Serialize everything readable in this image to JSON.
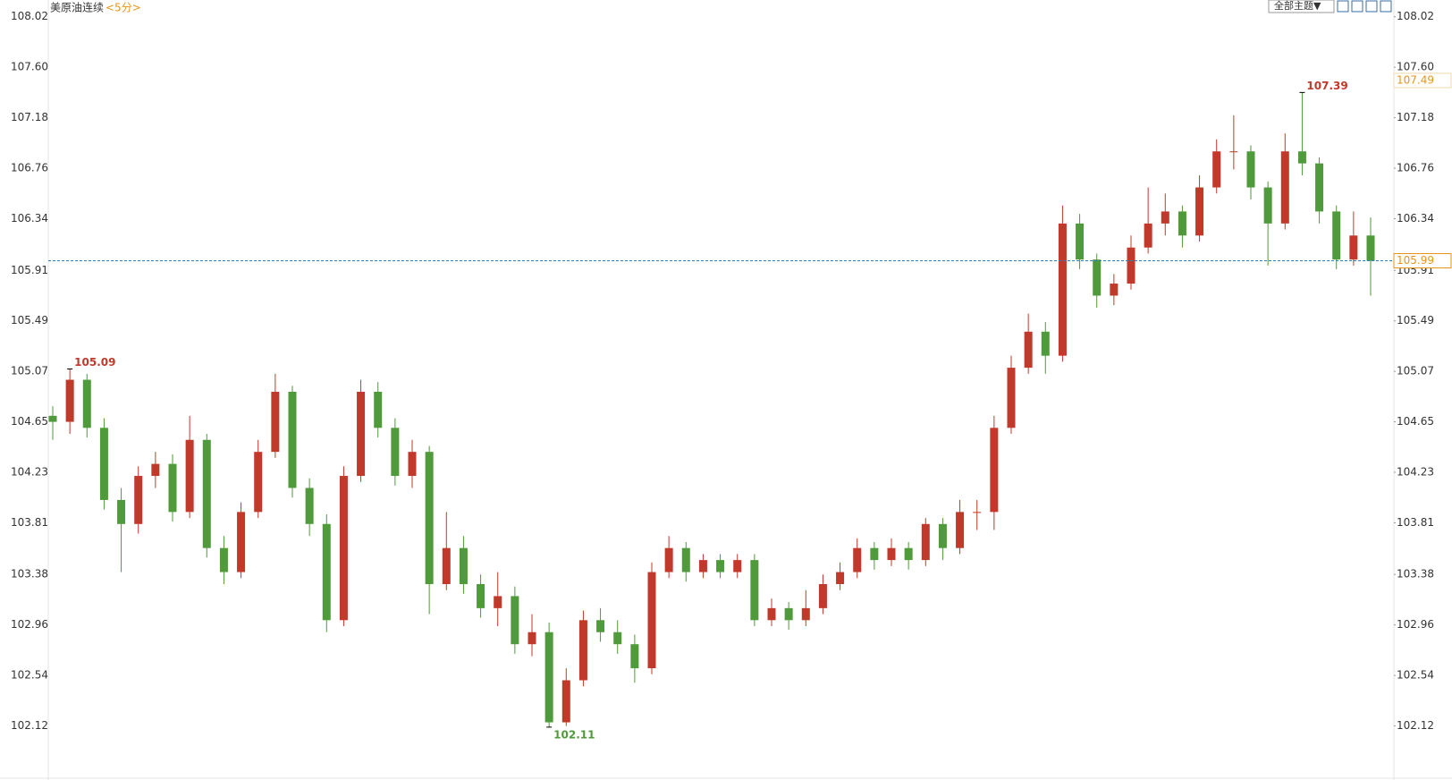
{
  "chart_data": {
    "type": "candlestick",
    "title": "美原油连续",
    "interval": "<5分>",
    "theme_button": "全部主题▼",
    "ylim": [
      101.7,
      108.07
    ],
    "yticks": [
      {
        "value": 108.02,
        "label": "108.02"
      },
      {
        "value": 107.6,
        "label": "107.60"
      },
      107.18,
      106.76,
      106.34,
      105.91,
      105.49,
      105.07,
      104.65,
      104.23,
      103.81,
      103.38,
      102.96,
      102.54,
      102.12
    ],
    "up_color": "#c0392b",
    "down_color": "#4f9a3a",
    "reference_price": 107.49,
    "series": [
      {
        "open": [
          104.7,
          104.65,
          105.0,
          104.6,
          104.0,
          103.8,
          104.2,
          104.3,
          103.9,
          104.5,
          103.6,
          103.4,
          103.9,
          104.4,
          104.9,
          104.1,
          103.8,
          103.0,
          104.2,
          104.9,
          104.6,
          104.2,
          104.4,
          103.3,
          103.6,
          103.3,
          103.1,
          103.2,
          102.8,
          102.9,
          102.15,
          102.5,
          103.0,
          102.9,
          102.8,
          102.6,
          103.4,
          103.6,
          103.4,
          103.5,
          103.4,
          103.5,
          103.0,
          103.1,
          103.0,
          103.1,
          103.3,
          103.4,
          103.6,
          103.5,
          103.6,
          103.5,
          103.8,
          103.6,
          103.9,
          103.9,
          104.6,
          105.1,
          105.4,
          105.2,
          106.3,
          106.0,
          105.7,
          105.8,
          106.1,
          106.3,
          106.4,
          106.2,
          106.6,
          106.9,
          106.9,
          106.6,
          106.3,
          106.9,
          106.8,
          106.4,
          106.0,
          106.2
        ],
        "high": [
          104.78,
          105.09,
          105.05,
          104.68,
          104.1,
          104.28,
          104.4,
          104.38,
          104.7,
          104.55,
          103.7,
          103.98,
          104.5,
          105.05,
          104.95,
          104.18,
          103.88,
          104.28,
          105.0,
          104.98,
          104.68,
          104.5,
          104.45,
          103.9,
          103.7,
          103.38,
          103.4,
          103.28,
          103.05,
          102.98,
          102.6,
          103.08,
          103.1,
          103.0,
          102.88,
          103.48,
          103.7,
          103.65,
          103.55,
          103.55,
          103.55,
          103.55,
          103.18,
          103.15,
          103.25,
          103.38,
          103.48,
          103.68,
          103.65,
          103.68,
          103.65,
          103.85,
          103.85,
          104.0,
          104.0,
          104.7,
          105.2,
          105.55,
          105.48,
          106.45,
          106.38,
          106.05,
          105.88,
          106.2,
          106.6,
          106.55,
          106.45,
          106.7,
          107.0,
          107.2,
          106.95,
          106.65,
          107.05,
          107.39,
          106.85,
          106.45,
          106.4,
          106.35
        ],
        "low": [
          104.5,
          104.55,
          104.52,
          103.92,
          103.4,
          103.72,
          104.1,
          103.82,
          103.85,
          103.52,
          103.3,
          103.35,
          103.85,
          104.35,
          104.02,
          103.7,
          102.9,
          102.95,
          104.15,
          104.52,
          104.12,
          104.1,
          103.05,
          103.25,
          103.22,
          103.02,
          102.95,
          102.72,
          102.7,
          102.11,
          102.12,
          102.45,
          102.82,
          102.72,
          102.48,
          102.55,
          103.35,
          103.32,
          103.35,
          103.35,
          103.35,
          102.95,
          102.95,
          102.92,
          102.95,
          103.05,
          103.25,
          103.35,
          103.42,
          103.45,
          103.42,
          103.45,
          103.5,
          103.55,
          103.75,
          103.75,
          104.55,
          105.05,
          105.05,
          105.15,
          105.92,
          105.6,
          105.62,
          105.75,
          106.05,
          106.2,
          106.1,
          106.15,
          106.55,
          106.75,
          106.5,
          105.95,
          106.25,
          106.7,
          106.3,
          105.92,
          105.95,
          105.7
        ],
        "close": [
          104.65,
          105.0,
          104.6,
          104.0,
          103.8,
          104.2,
          104.3,
          103.9,
          104.5,
          103.6,
          103.4,
          103.9,
          104.4,
          104.9,
          104.1,
          103.8,
          103.0,
          104.2,
          104.9,
          104.6,
          104.2,
          104.4,
          103.3,
          103.6,
          103.3,
          103.1,
          103.2,
          102.8,
          102.9,
          102.15,
          102.5,
          103.0,
          102.9,
          102.8,
          102.6,
          103.4,
          103.6,
          103.4,
          103.5,
          103.4,
          103.5,
          103.0,
          103.1,
          103.0,
          103.1,
          103.3,
          103.4,
          103.6,
          103.5,
          103.6,
          103.5,
          103.8,
          103.6,
          103.9,
          103.9,
          104.6,
          105.1,
          105.4,
          105.2,
          106.3,
          106.0,
          105.7,
          105.8,
          106.1,
          106.3,
          106.4,
          106.2,
          106.6,
          106.9,
          106.9,
          106.6,
          106.3,
          106.9,
          106.8,
          106.4,
          106.0,
          106.2,
          105.99
        ]
      }
    ],
    "highlights": [
      {
        "field": "high",
        "index": 1
      },
      {
        "field": "low",
        "index": 29
      },
      {
        "field": "high",
        "index": 73
      }
    ]
  }
}
